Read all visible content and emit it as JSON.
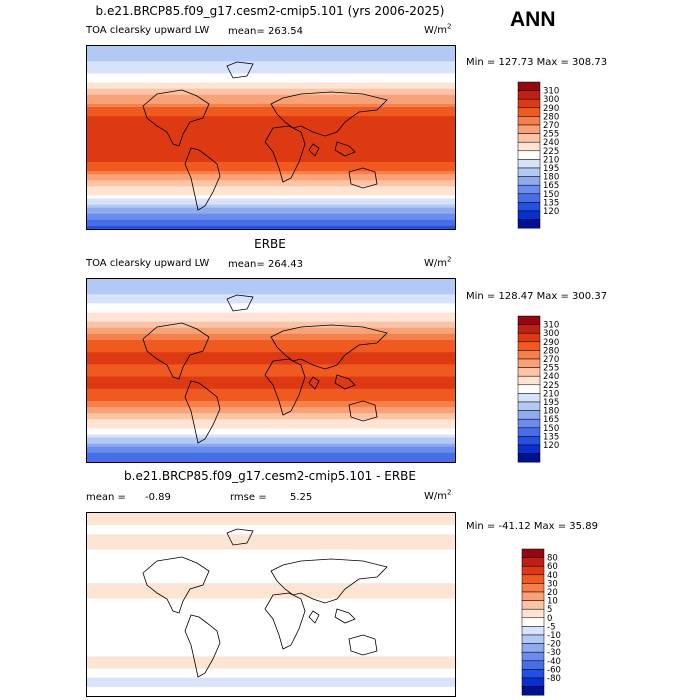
{
  "header": {
    "season": "ANN"
  },
  "panels": [
    {
      "id": "model",
      "title": "b.e21.BRCP85.f09_g17.cesm2-cmip5.101 (yrs 2006-2025)",
      "variable": "TOA clearsky upward LW",
      "stat1_label": "mean=",
      "stat1_value": "263.54",
      "stat2_label": "",
      "stat2_value": "",
      "units": "W/m",
      "units_sup": "2",
      "minmax": "Min = 127.73 Max = 308.73"
    },
    {
      "id": "obs",
      "title": "ERBE",
      "variable": "TOA clearsky upward LW",
      "stat1_label": "mean=",
      "stat1_value": "264.43",
      "stat2_label": "",
      "stat2_value": "",
      "units": "W/m",
      "units_sup": "2",
      "minmax": "Min = 128.47 Max = 300.37"
    },
    {
      "id": "diff",
      "title": "b.e21.BRCP85.f09_g17.cesm2-cmip5.101 - ERBE",
      "variable": "",
      "stat1_label": "mean =",
      "stat1_value": "-0.89",
      "stat2_label": "rmse =",
      "stat2_value": "5.25",
      "units": "W/m",
      "units_sup": "2",
      "minmax": "Min = -41.12 Max =  35.89"
    }
  ],
  "chart_data": [
    {
      "type": "heatmap",
      "title": "b.e21.BRCP85.f09_g17.cesm2-cmip5.101 (yrs 2006-2025)",
      "variable": "TOA clearsky upward LW",
      "units": "W/m2",
      "mean": 263.54,
      "min": 127.73,
      "max": 308.73,
      "colorbar_levels": [
        310,
        300,
        290,
        280,
        270,
        255,
        240,
        225,
        210,
        195,
        180,
        165,
        150,
        135,
        120
      ],
      "colorbar_colors": [
        "#98050f",
        "#c01f14",
        "#dd3a13",
        "#f05a1f",
        "#f6804a",
        "#f9a177",
        "#fbc4a6",
        "#fde4d3",
        "#ffffff",
        "#d7e3fa",
        "#b2c8f5",
        "#8eabf0",
        "#6a8cee",
        "#476ee8",
        "#2150e2",
        "#0a2fd0",
        "#00108f"
      ],
      "zonal_profile": [
        {
          "lat": 90,
          "value": 185
        },
        {
          "lat": 75,
          "value": 195
        },
        {
          "lat": 60,
          "value": 215
        },
        {
          "lat": 45,
          "value": 245
        },
        {
          "lat": 30,
          "value": 280
        },
        {
          "lat": 15,
          "value": 295
        },
        {
          "lat": 0,
          "value": 290
        },
        {
          "lat": -15,
          "value": 295
        },
        {
          "lat": -30,
          "value": 285
        },
        {
          "lat": -45,
          "value": 250
        },
        {
          "lat": -60,
          "value": 215
        },
        {
          "lat": -75,
          "value": 160
        },
        {
          "lat": -90,
          "value": 130
        }
      ]
    },
    {
      "type": "heatmap",
      "title": "ERBE",
      "variable": "TOA clearsky upward LW",
      "units": "W/m2",
      "mean": 264.43,
      "min": 128.47,
      "max": 300.37,
      "colorbar_levels": [
        310,
        300,
        290,
        280,
        270,
        255,
        240,
        225,
        210,
        195,
        180,
        165,
        150,
        135,
        120
      ],
      "colorbar_colors": [
        "#98050f",
        "#c01f14",
        "#dd3a13",
        "#f05a1f",
        "#f6804a",
        "#f9a177",
        "#fbc4a6",
        "#fde4d3",
        "#ffffff",
        "#d7e3fa",
        "#b2c8f5",
        "#8eabf0",
        "#6a8cee",
        "#476ee8",
        "#2150e2",
        "#0a2fd0",
        "#00108f"
      ],
      "zonal_profile": [
        {
          "lat": 90,
          "value": 180
        },
        {
          "lat": 75,
          "value": 195
        },
        {
          "lat": 60,
          "value": 220
        },
        {
          "lat": 45,
          "value": 248
        },
        {
          "lat": 30,
          "value": 282
        },
        {
          "lat": 15,
          "value": 292
        },
        {
          "lat": 0,
          "value": 288
        },
        {
          "lat": -15,
          "value": 293
        },
        {
          "lat": -30,
          "value": 282
        },
        {
          "lat": -45,
          "value": 250
        },
        {
          "lat": -60,
          "value": 215
        },
        {
          "lat": -75,
          "value": 165
        },
        {
          "lat": -90,
          "value": 132
        }
      ]
    },
    {
      "type": "heatmap",
      "title": "b.e21.BRCP85.f09_g17.cesm2-cmip5.101 - ERBE",
      "units": "W/m2",
      "mean": -0.89,
      "rmse": 5.25,
      "min": -41.12,
      "max": 35.89,
      "colorbar_levels": [
        80,
        60,
        40,
        30,
        20,
        10,
        5,
        0,
        -5,
        -10,
        -20,
        -30,
        -40,
        -60,
        -80
      ],
      "colorbar_colors": [
        "#98050f",
        "#c01f14",
        "#dd3a13",
        "#f05a1f",
        "#f6804a",
        "#f9a177",
        "#fbc4a6",
        "#fde4d3",
        "#ffffff",
        "#d7e3fa",
        "#b2c8f5",
        "#8eabf0",
        "#6a8cee",
        "#476ee8",
        "#2150e2",
        "#0a2fd0",
        "#00108f"
      ],
      "zonal_profile": [
        {
          "lat": 90,
          "value": 5
        },
        {
          "lat": 75,
          "value": -2
        },
        {
          "lat": 60,
          "value": 2
        },
        {
          "lat": 45,
          "value": -3
        },
        {
          "lat": 30,
          "value": -5
        },
        {
          "lat": 15,
          "value": 3
        },
        {
          "lat": 0,
          "value": -2
        },
        {
          "lat": -15,
          "value": -3
        },
        {
          "lat": -30,
          "value": -4
        },
        {
          "lat": -45,
          "value": -2
        },
        {
          "lat": -60,
          "value": 3
        },
        {
          "lat": -75,
          "value": -8
        },
        {
          "lat": -90,
          "value": -2
        }
      ]
    }
  ]
}
